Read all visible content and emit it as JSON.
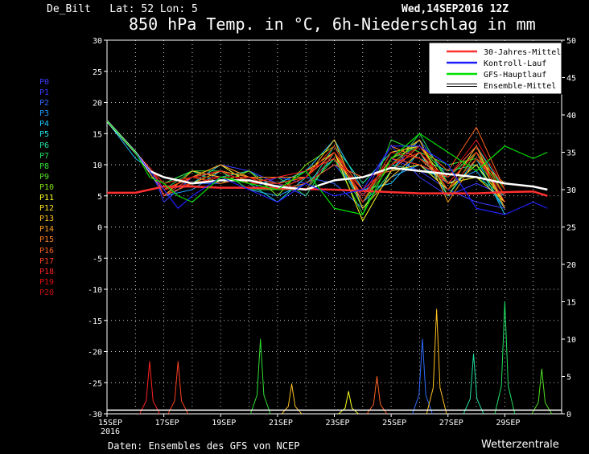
{
  "header": {
    "location": "De_Bilt   Lat: 52 Lon: 5",
    "date": "Wed,14SEP2016 12Z",
    "title": "850 hPa Temp. in °C, 6h-Niederschlag in mm"
  },
  "footer": {
    "source": "Daten: Ensembles des GFS von NCEP",
    "brand": "Wetterzentrale"
  },
  "member_labels": [
    {
      "label": "P0",
      "color": "#3a3cff"
    },
    {
      "label": "P1",
      "color": "#3a3cff"
    },
    {
      "label": "P2",
      "color": "#2f6bff"
    },
    {
      "label": "P3",
      "color": "#1f9bff"
    },
    {
      "label": "P4",
      "color": "#1ec8ff"
    },
    {
      "label": "P5",
      "color": "#20e0e0"
    },
    {
      "label": "P6",
      "color": "#20e0a0"
    },
    {
      "label": "P7",
      "color": "#20e060"
    },
    {
      "label": "P8",
      "color": "#30e030"
    },
    {
      "label": "P9",
      "color": "#50e020"
    },
    {
      "label": "P10",
      "color": "#80e010"
    },
    {
      "label": "P11",
      "color": "#ffff20"
    },
    {
      "label": "P12",
      "color": "#ffe020"
    },
    {
      "label": "P13",
      "color": "#ffc020"
    },
    {
      "label": "P14",
      "color": "#ffa020"
    },
    {
      "label": "P15",
      "color": "#ff8020"
    },
    {
      "label": "P16",
      "color": "#ff6020"
    },
    {
      "label": "P17",
      "color": "#ff4020"
    },
    {
      "label": "P18",
      "color": "#ff2020"
    },
    {
      "label": "P19",
      "color": "#e01010"
    },
    {
      "label": "P20",
      "color": "#c01010"
    }
  ],
  "chart_data": {
    "type": "line",
    "x_tick_labels": [
      "15SEP",
      "17SEP",
      "19SEP",
      "21SEP",
      "23SEP",
      "25SEP",
      "27SEP",
      "29SEP"
    ],
    "x_tick_sublabel": "2016",
    "y_left_ticks": [
      30,
      25,
      20,
      15,
      10,
      5,
      0,
      -5,
      -10,
      -15,
      -20,
      -25,
      -30
    ],
    "y_right_ticks": [
      50,
      45,
      40,
      35,
      30,
      25,
      20,
      15,
      10,
      5,
      0
    ],
    "ylim_left": [
      -30,
      30
    ],
    "ylim_right": [
      0,
      50
    ],
    "days": [
      0,
      16
    ],
    "grid": true,
    "legend_position": "top-right",
    "legend": [
      {
        "name": "30-Jahres-Mittel",
        "color": "#ff3030"
      },
      {
        "name": "Kontroll-Lauf",
        "color": "#2020ff"
      },
      {
        "name": "GFS-Hauptlauf",
        "color": "#00e000"
      },
      {
        "name": "Ensemble-Mittel",
        "color": "#ffffff"
      }
    ],
    "series": [
      {
        "name": "30-Jahres-Mittel",
        "axis": "left",
        "color": "#ff3030",
        "width": 2.5,
        "x": [
          0,
          1,
          2,
          3,
          4,
          5,
          6,
          7,
          8,
          9,
          10,
          11,
          12,
          13,
          14,
          15,
          15.5
        ],
        "y": [
          5.5,
          5.5,
          6.5,
          6.5,
          6.3,
          6.3,
          6.2,
          6.1,
          6,
          5.8,
          5.6,
          5.4,
          5.4,
          5.4,
          5.6,
          5.7,
          5.0
        ]
      },
      {
        "name": "Ensemble-Mittel",
        "axis": "left",
        "color": "#ffffff",
        "width": 2.5,
        "x": [
          0,
          1,
          1.5,
          2,
          3,
          4,
          5,
          6,
          7,
          8,
          9,
          10,
          11,
          12,
          13,
          14,
          15,
          15.5
        ],
        "y": [
          17,
          12,
          9,
          8,
          7,
          7.5,
          7.5,
          6.5,
          6,
          7.5,
          8,
          9.5,
          9,
          8.5,
          8,
          7,
          6.5,
          6
        ]
      },
      {
        "name": "Kontroll-Lauf",
        "axis": "left",
        "color": "#2020ff",
        "width": 1.2,
        "x": [
          0,
          1,
          1.5,
          2,
          2.5,
          3,
          4,
          5,
          6,
          7,
          8,
          9,
          10,
          11,
          12,
          13,
          14,
          15,
          15.5
        ],
        "y": [
          17,
          12,
          9,
          6,
          3,
          5,
          8,
          6,
          4,
          7,
          5,
          6,
          13,
          13,
          10,
          3,
          2,
          4,
          3
        ]
      },
      {
        "name": "GFS-Hauptlauf",
        "axis": "left",
        "color": "#00e000",
        "width": 1.2,
        "x": [
          0,
          1,
          1.5,
          2,
          2.5,
          3,
          4,
          5,
          6,
          7,
          8,
          9,
          10,
          11,
          12,
          13,
          14,
          15,
          15.5
        ],
        "y": [
          17,
          12,
          8,
          7,
          5,
          4,
          8,
          7,
          6,
          9,
          3,
          2,
          11,
          15,
          12,
          9,
          13,
          11,
          12
        ]
      }
    ],
    "ensemble_members_temp": [
      [
        17,
        12,
        8,
        5,
        7,
        10,
        9,
        7,
        5,
        12,
        4,
        11,
        9,
        6,
        4,
        3
      ],
      [
        17,
        12,
        9,
        4,
        8,
        9,
        6,
        8,
        7,
        10,
        5,
        13,
        8,
        5,
        7,
        5
      ],
      [
        17,
        12,
        9,
        6,
        7,
        7,
        8,
        6,
        8,
        7,
        3,
        9,
        14,
        8,
        12,
        4
      ],
      [
        17,
        12,
        9,
        5,
        6,
        9,
        6,
        5,
        7,
        11,
        4,
        8,
        10,
        7,
        9,
        3
      ],
      [
        17,
        11,
        9,
        7,
        9,
        8,
        7,
        7,
        9,
        14,
        6,
        7,
        12,
        5,
        11,
        2
      ],
      [
        17,
        12,
        8,
        6,
        7,
        10,
        7,
        4,
        8,
        12,
        5,
        10,
        9,
        8,
        13,
        6
      ],
      [
        17,
        12,
        9,
        5,
        8,
        8,
        9,
        6,
        6,
        13,
        7,
        12,
        11,
        9,
        10,
        3
      ],
      [
        17,
        12,
        9,
        6,
        9,
        7,
        8,
        8,
        5,
        12,
        3,
        9,
        15,
        7,
        8,
        5
      ],
      [
        17,
        12,
        8,
        7,
        9,
        9,
        6,
        6,
        6,
        11,
        2,
        14,
        12,
        10,
        11,
        4
      ],
      [
        17,
        12,
        9,
        5,
        7,
        8,
        8,
        7,
        8,
        13,
        4,
        11,
        13,
        8,
        12,
        6
      ],
      [
        17,
        12,
        9,
        6,
        8,
        7,
        9,
        5,
        10,
        13,
        4,
        10,
        14,
        5,
        12,
        5
      ],
      [
        17,
        12,
        9,
        7,
        8,
        10,
        7,
        6,
        8,
        12,
        1,
        9,
        10,
        6,
        10,
        4
      ],
      [
        17,
        12,
        9,
        6,
        7,
        9,
        8,
        6,
        9,
        12,
        4,
        12,
        13,
        7,
        8,
        4
      ],
      [
        17,
        12,
        9,
        5,
        9,
        8,
        7,
        7,
        8,
        14,
        3,
        8,
        12,
        6,
        13,
        3
      ],
      [
        17,
        12,
        8,
        6,
        8,
        10,
        8,
        6,
        9,
        11,
        5,
        11,
        14,
        4,
        11,
        7
      ],
      [
        17,
        12,
        9,
        7,
        8,
        9,
        8,
        8,
        8,
        12,
        6,
        13,
        11,
        7,
        12,
        3
      ],
      [
        17,
        12,
        9,
        5,
        7,
        8,
        7,
        6,
        7,
        10,
        8,
        9,
        13,
        9,
        16,
        6
      ],
      [
        17,
        12,
        9,
        6,
        8,
        7,
        8,
        7,
        8,
        12,
        5,
        11,
        10,
        8,
        13,
        5
      ],
      [
        17,
        12,
        9,
        5,
        8,
        9,
        7,
        8,
        9,
        11,
        6,
        10,
        12,
        7,
        12,
        4
      ],
      [
        17,
        12,
        9,
        6,
        7,
        8,
        8,
        6,
        8,
        13,
        4,
        12,
        11,
        8,
        14,
        6
      ],
      [
        17,
        12,
        9,
        7,
        8,
        8,
        7,
        7,
        6,
        12,
        5,
        10,
        13,
        6,
        11,
        5
      ]
    ],
    "precip_peaks": [
      {
        "day": 1.5,
        "value": 7,
        "member": 18
      },
      {
        "day": 2.5,
        "value": 7,
        "member": 17
      },
      {
        "day": 5.4,
        "value": 10,
        "member": 8
      },
      {
        "day": 6.5,
        "value": 4,
        "member": 13
      },
      {
        "day": 8.5,
        "value": 3,
        "member": 11
      },
      {
        "day": 9.5,
        "value": 5,
        "member": 16
      },
      {
        "day": 11.1,
        "value": 10,
        "member": 2
      },
      {
        "day": 11.6,
        "value": 14,
        "member": 13
      },
      {
        "day": 12.9,
        "value": 8,
        "member": 6
      },
      {
        "day": 14.0,
        "value": 15,
        "member": 7
      },
      {
        "day": 15.3,
        "value": 6,
        "member": 9
      }
    ]
  }
}
